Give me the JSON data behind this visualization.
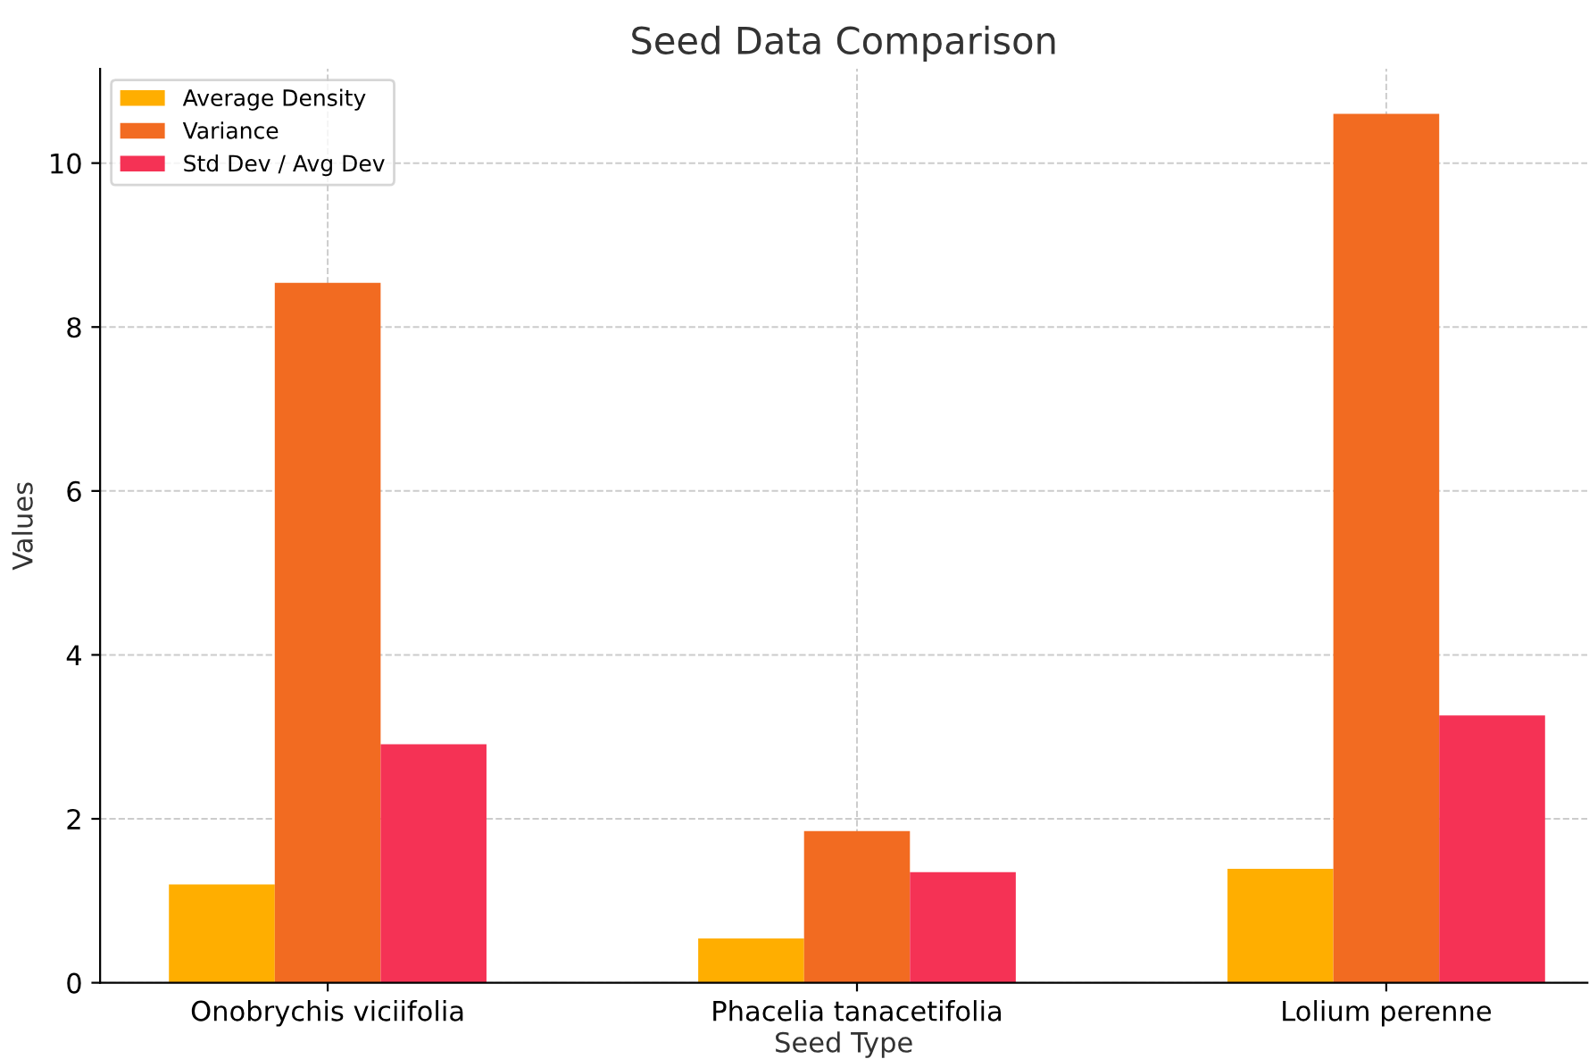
{
  "chart_data": {
    "type": "bar",
    "title": "Seed Data Comparison",
    "xlabel": "Seed Type",
    "ylabel": "Values",
    "categories": [
      "Onobrychis viciifolia",
      "Phacelia tanacetifolia",
      "Lolium perenne"
    ],
    "series": [
      {
        "name": "Average Density",
        "color": "#ffae00",
        "values": [
          1.2,
          0.54,
          1.39
        ]
      },
      {
        "name": "Variance",
        "color": "#f26b21",
        "values": [
          8.54,
          1.85,
          10.6
        ]
      },
      {
        "name": "Std Dev / Avg Dev",
        "color": "#f53255",
        "values": [
          2.91,
          1.35,
          3.26
        ]
      }
    ],
    "ylim": [
      0,
      11.15
    ],
    "yticks": [
      0,
      2,
      4,
      6,
      8,
      10
    ],
    "grid": true,
    "legend": "top left"
  }
}
